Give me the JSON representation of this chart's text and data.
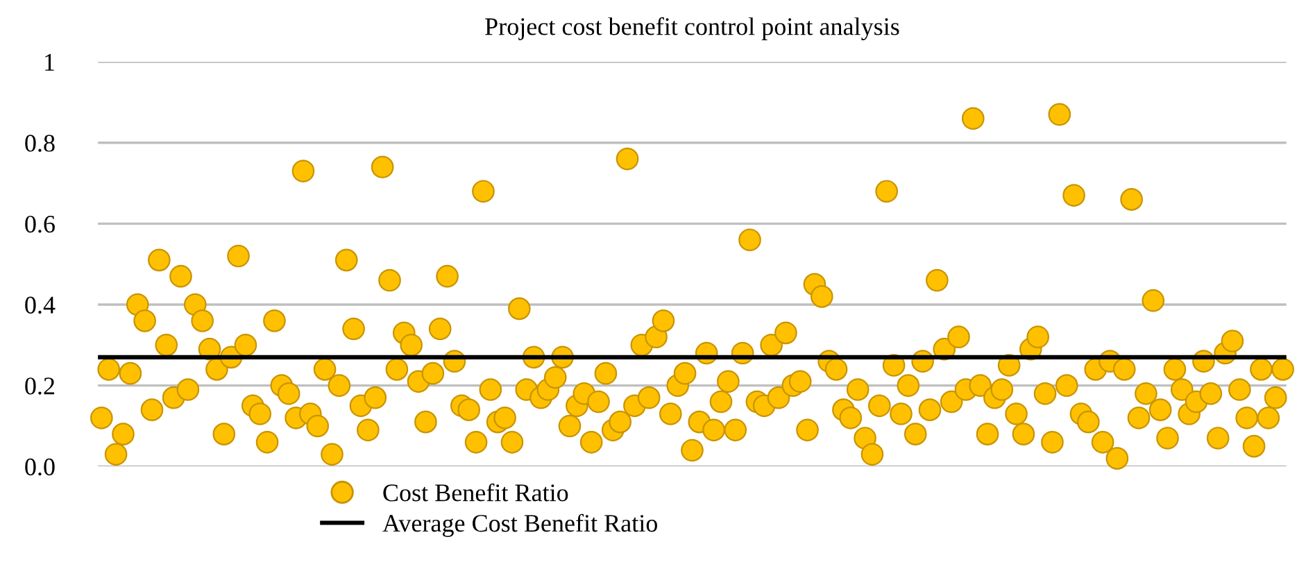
{
  "chart_data": {
    "type": "scatter",
    "title": "Project cost benefit control point analysis",
    "categories": [
      null,
      null,
      null,
      null,
      null,
      null,
      null,
      null,
      null,
      null,
      null,
      null,
      null,
      null,
      null,
      null,
      null,
      null,
      null,
      null,
      null,
      null,
      null,
      null,
      null,
      null,
      null,
      null,
      null,
      null,
      null,
      null,
      null,
      null,
      null,
      null,
      null,
      null,
      null,
      null,
      null,
      null,
      null,
      null,
      null,
      null,
      null,
      null,
      null,
      null,
      null,
      null,
      null,
      null,
      null,
      null,
      null,
      null,
      null,
      null,
      null,
      null,
      null,
      null,
      null,
      null,
      null,
      null,
      null,
      null,
      null,
      null,
      null,
      null,
      null,
      null,
      null,
      null,
      null,
      null,
      null,
      null,
      null,
      null,
      null,
      null,
      null,
      null,
      null,
      null,
      null,
      null,
      null,
      null,
      null,
      null,
      null,
      null,
      null,
      null,
      null,
      null,
      null,
      null,
      null,
      null,
      null,
      null,
      null,
      null,
      null,
      null,
      null,
      null,
      null,
      null,
      null,
      null,
      null,
      null,
      null,
      null,
      null,
      null,
      null,
      null,
      null,
      null,
      null,
      null,
      null,
      null,
      null,
      null,
      null,
      null,
      null,
      null,
      null,
      null,
      null,
      null,
      null,
      null,
      null,
      null,
      null,
      null,
      null,
      null,
      null,
      null,
      null,
      null,
      null,
      null,
      null,
      null,
      null,
      null,
      null,
      null,
      null,
      null,
      null
    ],
    "series": [
      {
        "name": "Cost Benefit Ratio",
        "color": "#ffc000",
        "values": [
          0.12,
          0.24,
          0.03,
          0.08,
          0.23,
          0.4,
          0.36,
          0.14,
          0.51,
          0.3,
          0.17,
          0.47,
          0.19,
          0.4,
          0.36,
          0.29,
          0.24,
          0.08,
          0.27,
          0.52,
          0.3,
          0.15,
          0.13,
          0.06,
          0.36,
          0.2,
          0.18,
          0.12,
          0.73,
          0.13,
          0.1,
          0.24,
          0.03,
          0.2,
          0.51,
          0.34,
          0.15,
          0.09,
          0.17,
          0.74,
          0.46,
          0.24,
          0.33,
          0.3,
          0.21,
          0.11,
          0.23,
          0.34,
          0.47,
          0.26,
          0.15,
          0.14,
          0.06,
          0.68,
          0.19,
          0.11,
          0.12,
          0.06,
          0.39,
          0.19,
          0.27,
          0.17,
          0.19,
          0.22,
          0.27,
          0.1,
          0.15,
          0.18,
          0.06,
          0.16,
          0.23,
          0.09,
          0.11,
          0.76,
          0.15,
          0.3,
          0.17,
          0.32,
          0.36,
          0.13,
          0.2,
          0.23,
          0.04,
          0.11,
          0.28,
          0.09,
          0.16,
          0.21,
          0.09,
          0.28,
          0.56,
          0.16,
          0.15,
          0.3,
          0.17,
          0.33,
          0.2,
          0.21,
          0.09,
          0.45,
          0.42,
          0.26,
          0.24,
          0.14,
          0.12,
          0.19,
          0.07,
          0.03,
          0.15,
          0.68,
          0.25,
          0.13,
          0.2,
          0.08,
          0.26,
          0.14,
          0.46,
          0.29,
          0.16,
          0.32,
          0.19,
          0.86,
          0.2,
          0.08,
          0.17,
          0.19,
          0.25,
          0.13,
          0.08,
          0.29,
          0.32,
          0.18,
          0.06,
          0.87,
          0.2,
          0.67,
          0.13,
          0.11,
          0.24,
          0.06,
          0.26,
          0.02,
          0.24,
          0.66,
          0.12,
          0.18,
          0.41,
          0.14,
          0.07,
          0.24,
          0.19,
          0.13,
          0.16,
          0.26,
          0.18,
          0.07,
          0.28,
          0.31,
          0.19,
          0.12,
          0.05,
          0.24,
          0.12,
          0.17,
          0.24
        ]
      }
    ],
    "ref_lines": [
      {
        "axis": "y",
        "value": 0.27,
        "label": "Average Cost Benefit Ratio",
        "color": "#000000",
        "line_style": "solid"
      }
    ],
    "ylim": [
      0,
      1
    ],
    "yticks": [
      {
        "value": 0,
        "label": "0.0"
      },
      0.2,
      0.4,
      0.6,
      0.8,
      1
    ],
    "tick_labels": "y",
    "grid": "y",
    "legend": "bottom",
    "marker": "circle"
  }
}
